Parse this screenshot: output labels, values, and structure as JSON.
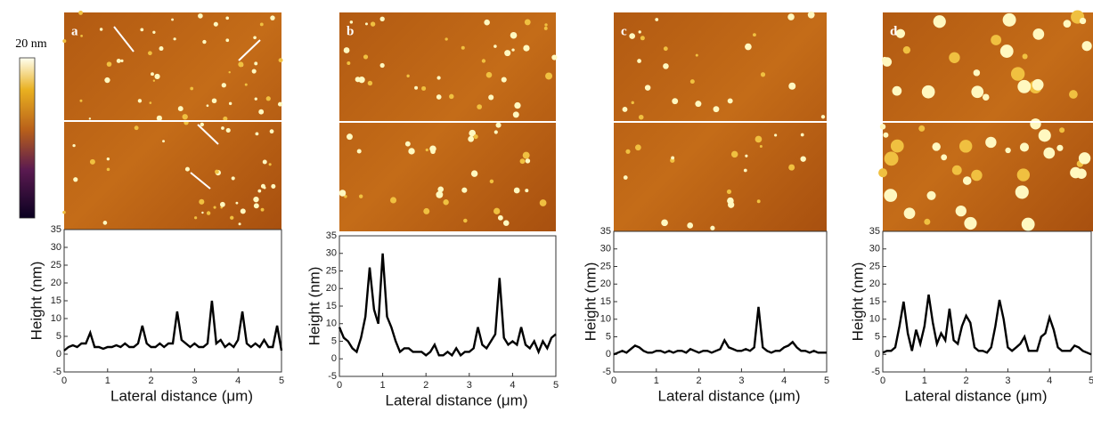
{
  "colorbar": {
    "label": "20 nm"
  },
  "chart_data": [
    {
      "type": "line",
      "panel_label": "a",
      "xlabel": "Lateral distance (μm)",
      "ylabel": "Height (nm)",
      "color": "#000000",
      "x": [
        0,
        0.1,
        0.2,
        0.3,
        0.4,
        0.5,
        0.6,
        0.7,
        0.8,
        0.9,
        1,
        1.1,
        1.2,
        1.3,
        1.4,
        1.5,
        1.6,
        1.7,
        1.8,
        1.9,
        2,
        2.1,
        2.2,
        2.3,
        2.4,
        2.5,
        2.6,
        2.7,
        2.8,
        2.9,
        3,
        3.1,
        3.2,
        3.3,
        3.4,
        3.5,
        3.6,
        3.7,
        3.8,
        3.9,
        4,
        4.1,
        4.2,
        4.3,
        4.4,
        4.5,
        4.6,
        4.7,
        4.8,
        4.9,
        5
      ],
      "values": [
        1,
        2,
        2.5,
        2,
        3,
        3,
        6,
        2,
        2,
        1.5,
        2,
        2,
        2.5,
        2,
        3,
        2,
        2,
        3,
        8,
        3,
        2,
        2,
        3,
        2,
        3,
        3,
        12,
        4,
        3,
        2,
        3,
        2,
        2,
        3,
        15,
        3,
        4,
        2,
        3,
        2,
        4,
        12,
        3,
        2,
        3,
        2,
        4,
        2,
        2,
        8,
        1
      ],
      "xlim": [
        0,
        5
      ],
      "ylim": [
        -5,
        35
      ],
      "xticks": [
        0,
        1,
        2,
        3,
        4,
        5
      ],
      "yticks": [
        -5,
        0,
        5,
        10,
        15,
        20,
        25,
        30,
        35
      ]
    },
    {
      "type": "line",
      "panel_label": "b",
      "xlabel": "Lateral distance (μm)",
      "ylabel": "Height (nm)",
      "color": "#000000",
      "x": [
        0,
        0.1,
        0.2,
        0.3,
        0.4,
        0.5,
        0.6,
        0.7,
        0.8,
        0.9,
        1,
        1.1,
        1.2,
        1.3,
        1.4,
        1.5,
        1.6,
        1.7,
        1.8,
        1.9,
        2,
        2.1,
        2.2,
        2.3,
        2.4,
        2.5,
        2.6,
        2.7,
        2.8,
        2.9,
        3,
        3.1,
        3.2,
        3.3,
        3.4,
        3.5,
        3.6,
        3.7,
        3.8,
        3.9,
        4,
        4.1,
        4.2,
        4.3,
        4.4,
        4.5,
        4.6,
        4.7,
        4.8,
        4.9,
        5
      ],
      "values": [
        9,
        6,
        5,
        3,
        2,
        6,
        12,
        26,
        14,
        10,
        30,
        12,
        9,
        5,
        2,
        3,
        3,
        2,
        2,
        2,
        1,
        2,
        4,
        1,
        1,
        2,
        1,
        3,
        1,
        2,
        2,
        3,
        9,
        4,
        3,
        5,
        7,
        23,
        6,
        4,
        5,
        4,
        9,
        4,
        3,
        5,
        2,
        5,
        3,
        6,
        7
      ],
      "xlim": [
        0,
        5
      ],
      "ylim": [
        -5,
        35
      ],
      "xticks": [
        0,
        1,
        2,
        3,
        4,
        5
      ],
      "yticks": [
        -5,
        0,
        5,
        10,
        15,
        20,
        25,
        30,
        35
      ]
    },
    {
      "type": "line",
      "panel_label": "c",
      "xlabel": "Lateral distance (μm)",
      "ylabel": "Height (nm)",
      "color": "#000000",
      "x": [
        0,
        0.1,
        0.2,
        0.3,
        0.4,
        0.5,
        0.6,
        0.7,
        0.8,
        0.9,
        1,
        1.1,
        1.2,
        1.3,
        1.4,
        1.5,
        1.6,
        1.7,
        1.8,
        1.9,
        2,
        2.1,
        2.2,
        2.3,
        2.4,
        2.5,
        2.6,
        2.7,
        2.8,
        2.9,
        3,
        3.1,
        3.2,
        3.3,
        3.4,
        3.5,
        3.6,
        3.7,
        3.8,
        3.9,
        4,
        4.1,
        4.2,
        4.3,
        4.4,
        4.5,
        4.6,
        4.7,
        4.8,
        4.9,
        5
      ],
      "values": [
        0,
        0.5,
        1,
        0.5,
        1.5,
        2.5,
        2,
        1,
        0.5,
        0.5,
        1,
        1,
        0.5,
        1,
        0.5,
        1,
        1,
        0.5,
        1.5,
        1,
        0.5,
        1,
        1,
        0.5,
        1,
        1.5,
        4,
        2,
        1.5,
        1,
        1,
        1.5,
        1,
        2,
        13.5,
        2,
        1,
        0.5,
        1,
        1,
        2,
        2.5,
        3.5,
        2,
        1,
        1,
        0.5,
        1,
        0.5,
        0.5,
        0.5
      ],
      "xlim": [
        0,
        5
      ],
      "ylim": [
        -5,
        35
      ],
      "xticks": [
        0,
        1,
        2,
        3,
        4,
        5
      ],
      "yticks": [
        -5,
        0,
        5,
        10,
        15,
        20,
        25,
        30,
        35
      ]
    },
    {
      "type": "line",
      "panel_label": "d",
      "xlabel": "Lateral distance (μm)",
      "ylabel": "Height (nm)",
      "color": "#000000",
      "x": [
        0,
        0.1,
        0.2,
        0.3,
        0.4,
        0.5,
        0.6,
        0.7,
        0.8,
        0.9,
        1,
        1.1,
        1.2,
        1.3,
        1.4,
        1.5,
        1.6,
        1.7,
        1.8,
        1.9,
        2,
        2.1,
        2.2,
        2.3,
        2.4,
        2.5,
        2.6,
        2.7,
        2.8,
        2.9,
        3,
        3.1,
        3.2,
        3.3,
        3.4,
        3.5,
        3.6,
        3.7,
        3.8,
        3.9,
        4,
        4.1,
        4.2,
        4.3,
        4.4,
        4.5,
        4.6,
        4.7,
        4.8,
        4.9,
        5
      ],
      "values": [
        0.5,
        1,
        1,
        2,
        8,
        15,
        6,
        1,
        7,
        3,
        8,
        17,
        9,
        3,
        6,
        4,
        13,
        4,
        3,
        8,
        11,
        9,
        2,
        1,
        1,
        0.5,
        2,
        8,
        15.5,
        10,
        2,
        1,
        2,
        3,
        5,
        1,
        1,
        1,
        5,
        6,
        10.5,
        7,
        2,
        1,
        1,
        1,
        2.5,
        2,
        1,
        0.5,
        0
      ],
      "xlim": [
        0,
        5
      ],
      "ylim": [
        -5,
        35
      ],
      "xticks": [
        0,
        1,
        2,
        3,
        4,
        5
      ],
      "yticks": [
        -5,
        0,
        5,
        10,
        15,
        20,
        25,
        30,
        35
      ]
    }
  ]
}
